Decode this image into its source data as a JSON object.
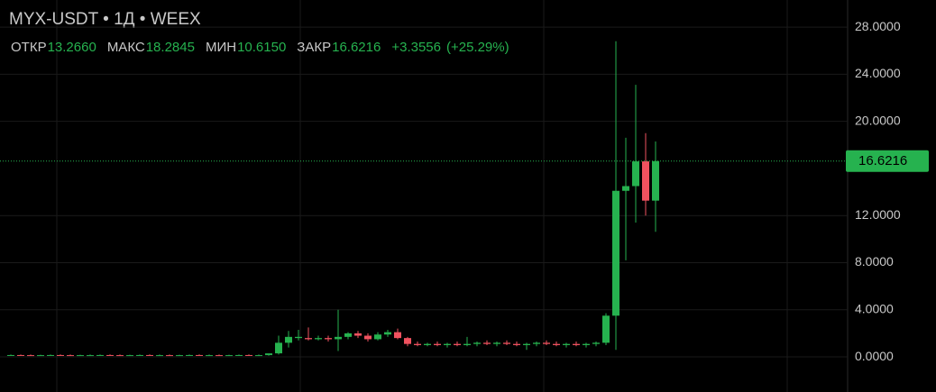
{
  "chart_data": {
    "type": "candlestick",
    "title": "MYX-USDT • 1Д • WEEX",
    "ohlc_header": [
      {
        "label": "ОТКР",
        "value": "13.2660"
      },
      {
        "label": "МАКС",
        "value": "18.2845"
      },
      {
        "label": "МИН",
        "value": "10.6150"
      },
      {
        "label": "ЗАКР",
        "value": "16.6216"
      }
    ],
    "change": "+3.3556",
    "change_percent": "(+25.29%)",
    "up_color": "#26b24f",
    "down_color": "#f0525f",
    "ylim": [
      -2.98,
      30.3
    ],
    "yticks": [
      {
        "value": 0,
        "label": "0.0000"
      },
      {
        "value": 4,
        "label": "4.0000"
      },
      {
        "value": 8,
        "label": "8.0000"
      },
      {
        "value": 12,
        "label": "12.0000"
      },
      {
        "value": 20,
        "label": "20.0000"
      },
      {
        "value": 24,
        "label": "24.0000"
      },
      {
        "value": 28,
        "label": "28.0000"
      }
    ],
    "grid": true,
    "last_price": {
      "value": 16.6216,
      "label": "16.6216"
    },
    "open": [
      0.15,
      0.16,
      0.15,
      0.14,
      0.15,
      0.16,
      0.15,
      0.14,
      0.15,
      0.15,
      0.16,
      0.15,
      0.14,
      0.15,
      0.16,
      0.15,
      0.15,
      0.14,
      0.15,
      0.16,
      0.15,
      0.15,
      0.14,
      0.15,
      0.16,
      0.15,
      0.15,
      0.3,
      1.2,
      1.6,
      1.6,
      1.5,
      1.6,
      1.5,
      1.7,
      2.0,
      1.8,
      1.5,
      1.9,
      2.1,
      1.6,
      1.1,
      1.0,
      1.1,
      1.0,
      1.1,
      1.0,
      1.1,
      1.2,
      1.1,
      1.2,
      1.1,
      1.0,
      1.1,
      1.2,
      1.1,
      1.0,
      1.1,
      1.0,
      1.1,
      1.2,
      3.5,
      14.1,
      14.5,
      16.6,
      13.266
    ],
    "high": [
      0.2,
      0.2,
      0.2,
      0.19,
      0.2,
      0.21,
      0.2,
      0.19,
      0.2,
      0.2,
      0.21,
      0.2,
      0.19,
      0.2,
      0.21,
      0.2,
      0.2,
      0.19,
      0.2,
      0.21,
      0.2,
      0.2,
      0.19,
      0.2,
      0.21,
      0.2,
      0.2,
      1.8,
      2.2,
      2.3,
      2.5,
      1.8,
      1.8,
      4.0,
      2.1,
      2.2,
      2.0,
      2.1,
      2.3,
      2.4,
      1.7,
      1.3,
      1.2,
      1.3,
      1.2,
      1.3,
      1.7,
      1.3,
      1.4,
      1.3,
      1.4,
      1.3,
      1.2,
      1.3,
      1.4,
      1.3,
      1.2,
      1.3,
      1.2,
      1.3,
      3.7,
      26.8,
      18.6,
      23.1,
      19.0,
      18.2845
    ],
    "low": [
      0.1,
      0.1,
      0.1,
      0.09,
      0.1,
      0.11,
      0.1,
      0.09,
      0.1,
      0.1,
      0.11,
      0.1,
      0.09,
      0.1,
      0.11,
      0.1,
      0.1,
      0.09,
      0.1,
      0.11,
      0.1,
      0.1,
      0.09,
      0.1,
      0.11,
      0.1,
      0.1,
      0.2,
      0.8,
      1.4,
      1.4,
      1.4,
      1.3,
      0.5,
      1.5,
      1.6,
      1.3,
      1.4,
      1.7,
      1.5,
      0.9,
      0.9,
      0.9,
      0.9,
      0.8,
      0.9,
      0.9,
      0.9,
      1.0,
      0.9,
      1.0,
      0.9,
      0.6,
      0.9,
      1.0,
      0.9,
      0.8,
      0.9,
      0.8,
      0.9,
      1.0,
      0.6,
      8.2,
      11.4,
      12.0,
      10.615
    ],
    "close": [
      0.16,
      0.15,
      0.14,
      0.15,
      0.16,
      0.15,
      0.14,
      0.15,
      0.15,
      0.16,
      0.15,
      0.14,
      0.15,
      0.16,
      0.15,
      0.15,
      0.14,
      0.15,
      0.16,
      0.15,
      0.15,
      0.14,
      0.15,
      0.16,
      0.15,
      0.15,
      0.3,
      1.2,
      1.7,
      1.7,
      1.5,
      1.6,
      1.5,
      1.7,
      2.0,
      1.8,
      1.5,
      1.9,
      2.1,
      1.6,
      1.1,
      1.0,
      1.1,
      1.0,
      1.1,
      1.0,
      1.1,
      1.2,
      1.1,
      1.2,
      1.1,
      1.0,
      1.1,
      1.2,
      1.1,
      1.0,
      1.1,
      1.0,
      1.1,
      1.2,
      3.5,
      14.1,
      14.5,
      16.6,
      13.266,
      16.6216
    ]
  }
}
